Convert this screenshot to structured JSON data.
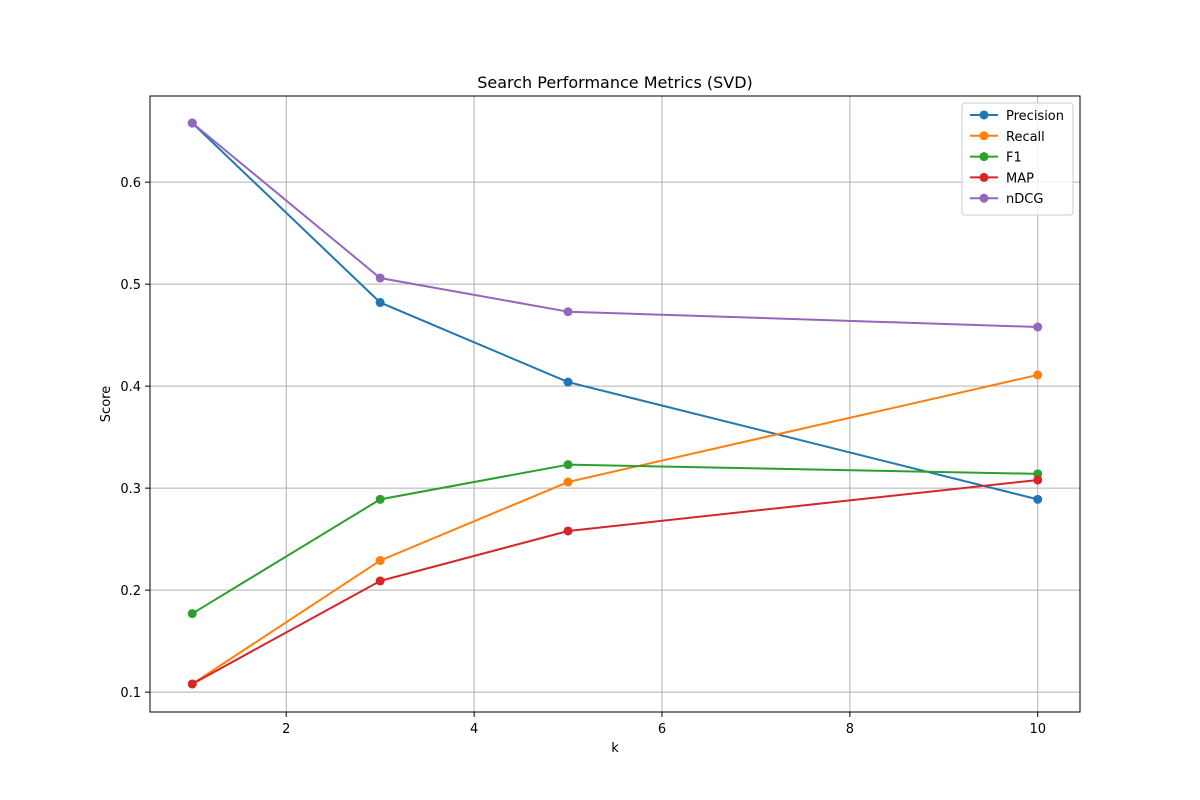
{
  "chart_data": {
    "type": "line",
    "title": "Search Performance Metrics (SVD)",
    "xlabel": "k",
    "ylabel": "Score",
    "x": [
      1,
      3,
      5,
      10
    ],
    "xlim": [
      0.55,
      10.45
    ],
    "ylim": [
      0.0805,
      0.6845
    ],
    "xticks": [
      2,
      4,
      6,
      8,
      10
    ],
    "yticks": [
      0.1,
      0.2,
      0.3,
      0.4,
      0.5,
      0.6
    ],
    "xtick_labels": [
      "2",
      "4",
      "6",
      "8",
      "10"
    ],
    "ytick_labels": [
      "0.1",
      "0.2",
      "0.3",
      "0.4",
      "0.5",
      "0.6"
    ],
    "grid": true,
    "legend_position": "top-right",
    "markers": "circle",
    "series": [
      {
        "name": "Precision",
        "color": "#1f77b4",
        "values": [
          0.658,
          0.482,
          0.404,
          0.289
        ]
      },
      {
        "name": "Recall",
        "color": "#ff7f0e",
        "values": [
          0.108,
          0.229,
          0.306,
          0.411
        ]
      },
      {
        "name": "F1",
        "color": "#2ca02c",
        "values": [
          0.177,
          0.289,
          0.323,
          0.314
        ]
      },
      {
        "name": "MAP",
        "color": "#d62728",
        "values": [
          0.108,
          0.209,
          0.258,
          0.308
        ]
      },
      {
        "name": "nDCG",
        "color": "#9467bd",
        "values": [
          0.658,
          0.506,
          0.473,
          0.458
        ]
      }
    ]
  }
}
